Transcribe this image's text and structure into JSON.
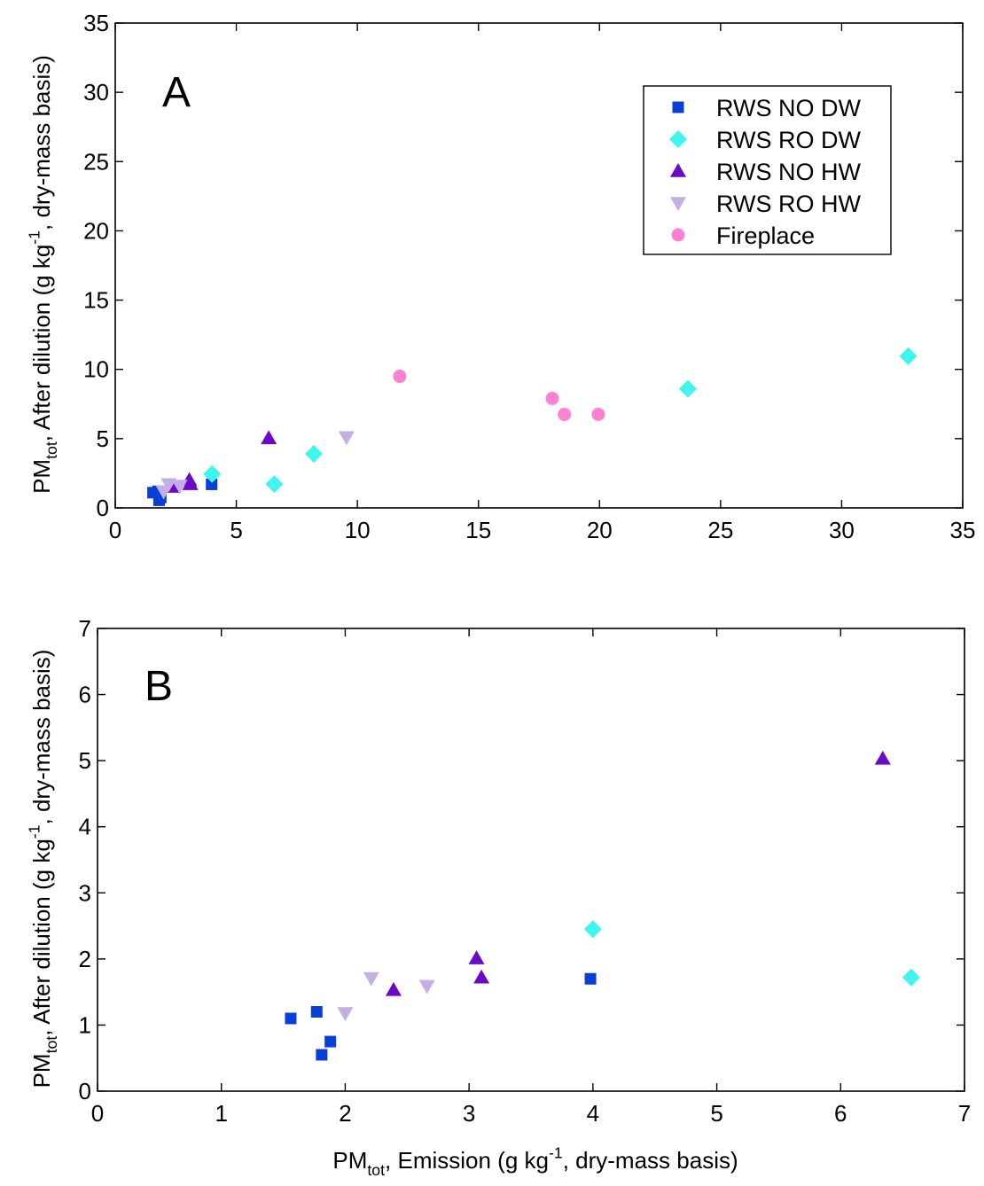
{
  "chart_data": [
    {
      "type": "scatter",
      "panel_label": "A",
      "xlim": [
        0,
        35
      ],
      "ylim": [
        0,
        35
      ],
      "x_ticks": [
        0,
        5,
        10,
        15,
        20,
        25,
        30,
        35
      ],
      "y_ticks": [
        0,
        5,
        10,
        15,
        20,
        25,
        30,
        35
      ],
      "x_tick_labels": [
        "0",
        "5",
        "10",
        "15",
        "20",
        "25",
        "30",
        "35"
      ],
      "y_tick_labels": [
        "0",
        "5",
        "10",
        "15",
        "20",
        "25",
        "30",
        "35"
      ],
      "ylabel": {
        "pre": "PM",
        "sub": "tot",
        "post": ", After dilution (g kg",
        "sup": "-1",
        "end": ", dry-mass basis)"
      },
      "grid": false,
      "legend_position": "top-right",
      "series": [
        {
          "name": "RWS NO DW",
          "marker": "square",
          "color": "#0a3fd6",
          "points": [
            [
              1.56,
              1.1
            ],
            [
              1.77,
              1.2
            ],
            [
              1.81,
              0.55
            ],
            [
              1.88,
              0.75
            ],
            [
              3.98,
              1.7
            ]
          ]
        },
        {
          "name": "RWS RO DW",
          "marker": "diamond",
          "color": "#3ff5f0",
          "points": [
            [
              4.0,
              2.45
            ],
            [
              6.57,
              1.72
            ],
            [
              8.2,
              3.9
            ],
            [
              23.65,
              8.6
            ],
            [
              32.75,
              10.95
            ]
          ]
        },
        {
          "name": "RWS NO HW",
          "marker": "triangle-up",
          "color": "#6a0ac6",
          "points": [
            [
              2.39,
              1.53
            ],
            [
              3.06,
              2.01
            ],
            [
              3.1,
              1.72
            ],
            [
              6.34,
              5.03
            ]
          ]
        },
        {
          "name": "RWS RO HW",
          "marker": "triangle-down",
          "color": "#c4aee6",
          "points": [
            [
              2.0,
              1.18
            ],
            [
              2.21,
              1.71
            ],
            [
              2.66,
              1.59
            ],
            [
              9.55,
              5.1
            ]
          ]
        },
        {
          "name": "Fireplace",
          "marker": "circle",
          "color": "#ff80d4",
          "points": [
            [
              11.75,
              9.5
            ],
            [
              18.05,
              7.9
            ],
            [
              18.55,
              6.75
            ],
            [
              19.95,
              6.75
            ]
          ]
        }
      ]
    },
    {
      "type": "scatter",
      "panel_label": "B",
      "xlim": [
        0,
        7
      ],
      "ylim": [
        0,
        7
      ],
      "x_ticks": [
        0,
        1,
        2,
        3,
        4,
        5,
        6,
        7
      ],
      "y_ticks": [
        0,
        1,
        2,
        3,
        4,
        5,
        6,
        7
      ],
      "x_tick_labels": [
        "0",
        "1",
        "2",
        "3",
        "4",
        "5",
        "6",
        "7"
      ],
      "y_tick_labels": [
        "0",
        "1",
        "2",
        "3",
        "4",
        "5",
        "6",
        "7"
      ],
      "xlabel": {
        "pre": "PM",
        "sub": "tot",
        "post": ", Emission (g kg",
        "sup": "-1",
        "end": ", dry-mass basis)"
      },
      "ylabel": {
        "pre": "PM",
        "sub": "tot",
        "post": ", After dilution (g kg",
        "sup": "-1",
        "end": ", dry-mass basis)"
      },
      "grid": false,
      "series": [
        {
          "name": "RWS NO DW",
          "marker": "square",
          "color": "#0a3fd6",
          "points": [
            [
              1.56,
              1.1
            ],
            [
              1.77,
              1.2
            ],
            [
              1.81,
              0.55
            ],
            [
              1.88,
              0.75
            ],
            [
              3.98,
              1.7
            ]
          ]
        },
        {
          "name": "RWS RO DW",
          "marker": "diamond",
          "color": "#3ff5f0",
          "points": [
            [
              4.0,
              2.45
            ],
            [
              6.57,
              1.72
            ]
          ]
        },
        {
          "name": "RWS NO HW",
          "marker": "triangle-up",
          "color": "#6a0ac6",
          "points": [
            [
              2.39,
              1.53
            ],
            [
              3.06,
              2.01
            ],
            [
              3.1,
              1.72
            ],
            [
              6.34,
              5.03
            ]
          ]
        },
        {
          "name": "RWS RO HW",
          "marker": "triangle-down",
          "color": "#c4aee6",
          "points": [
            [
              2.0,
              1.18
            ],
            [
              2.21,
              1.71
            ],
            [
              2.66,
              1.59
            ]
          ]
        }
      ]
    }
  ]
}
